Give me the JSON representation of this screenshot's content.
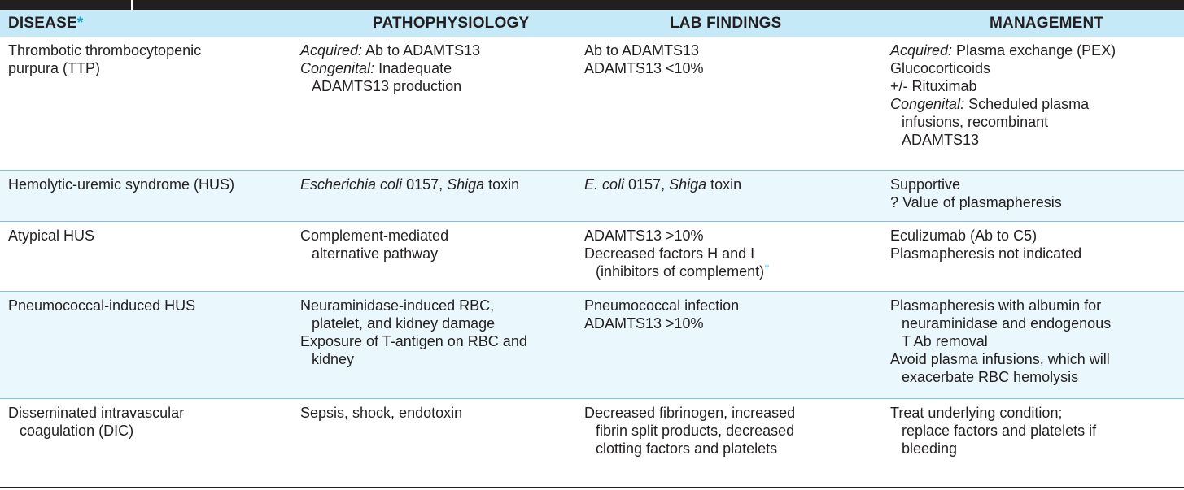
{
  "header": {
    "disease": "DISEASE",
    "disease_mark": "*",
    "pathophysiology": "PATHOPHYSIOLOGY",
    "lab_findings": "LAB FINDINGS",
    "management": "MANAGEMENT"
  },
  "rows": [
    {
      "disease": [
        "Thrombotic thrombocytopenic",
        "purpura (TTP)"
      ],
      "patho": {
        "l1_em": "Acquired:",
        "l1": " Ab to ADAMTS13",
        "l2_em": "Congenital:",
        "l2": " Inadequate",
        "l3": "ADAMTS13 production"
      },
      "lab": [
        "Ab to ADAMTS13",
        "ADAMTS13 <10%"
      ],
      "mgmt": {
        "l1_em": "Acquired:",
        "l1": " Plasma exchange (PEX)",
        "l2": "Glucocorticoids",
        "l3": "+/- Rituximab",
        "l4_em": "Congenital:",
        "l4": " Scheduled plasma",
        "l5": "infusions, recombinant",
        "l6": "ADAMTS13"
      }
    },
    {
      "disease": [
        "Hemolytic-uremic syndrome (HUS)"
      ],
      "patho": {
        "l1_em": "Escherichia coli",
        "l1": " 0157, ",
        "l1_em2": "Shiga",
        "l1_end": " toxin"
      },
      "lab": {
        "l1_em": "E. coli",
        "l1": " 0157, ",
        "l1_em2": "Shiga",
        "l1_end": " toxin"
      },
      "mgmt": [
        "Supportive",
        "? Value of plasmapheresis"
      ]
    },
    {
      "disease": [
        "Atypical HUS"
      ],
      "patho": [
        "Complement-mediated",
        "alternative pathway"
      ],
      "lab": {
        "l1": "ADAMTS13 >10%",
        "l2": "Decreased factors H and I",
        "l3": "(inhibitors of complement)",
        "l3_mark": "†"
      },
      "mgmt": [
        "Eculizumab (Ab to C5)",
        "Plasmapheresis not indicated"
      ]
    },
    {
      "disease": [
        "Pneumococcal-induced HUS"
      ],
      "patho": [
        "Neuraminidase-induced RBC,",
        "platelet, and kidney damage",
        "Exposure of T-antigen on RBC and",
        "kidney"
      ],
      "lab": [
        "Pneumococcal infection",
        "ADAMTS13 >10%"
      ],
      "mgmt": [
        "Plasmapheresis with albumin for",
        "neuraminidase and endogenous",
        "T Ab removal",
        "Avoid plasma infusions, which will",
        "exacerbate RBC hemolysis"
      ]
    },
    {
      "disease": [
        "Disseminated intravascular",
        "coagulation (DIC)"
      ],
      "patho": [
        "Sepsis, shock, endotoxin"
      ],
      "lab": [
        "Decreased fibrinogen, increased",
        "fibrin split products, decreased",
        "clotting factors and platelets"
      ],
      "mgmt": [
        "Treat underlying condition;",
        "replace factors and platelets if",
        "bleeding"
      ]
    }
  ],
  "colors": {
    "header_bg": "#c6e9f7",
    "shaded_row_bg": "#eaf7fc",
    "accent": "#1ba3d4",
    "text": "#231f20"
  }
}
